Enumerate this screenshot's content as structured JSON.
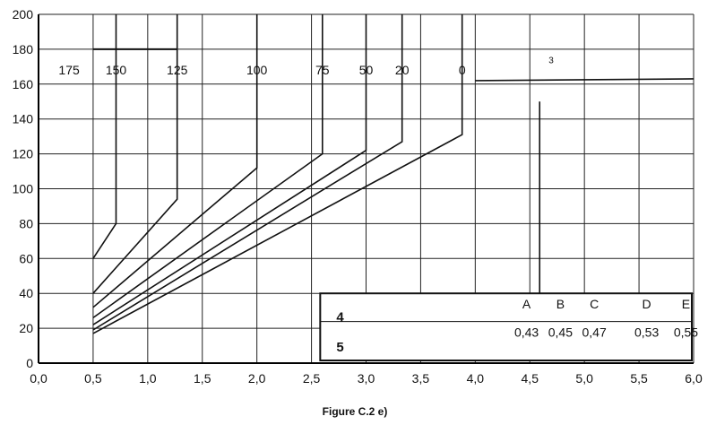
{
  "chart_data": {
    "type": "line",
    "title": "",
    "caption": "Figure C.2 e)",
    "xlabel": "",
    "ylabel": "",
    "xlim": [
      0,
      6
    ],
    "ylim": [
      0,
      200
    ],
    "x_ticks": [
      "0,0",
      "0,5",
      "1,0",
      "1,5",
      "2,0",
      "2,5",
      "3,0",
      "3,5",
      "4,0",
      "4,5",
      "5,0",
      "5,5",
      "6,0"
    ],
    "y_ticks": [
      "0",
      "20",
      "40",
      "60",
      "80",
      "100",
      "120",
      "140",
      "160",
      "180",
      "200"
    ],
    "grid": true,
    "series": [
      {
        "name": "175",
        "label_x": 0.28,
        "label_y": 168,
        "points": []
      },
      {
        "name": "150",
        "label_x": 0.71,
        "label_y": 168,
        "points": [
          [
            0.5,
            60
          ],
          [
            0.71,
            80
          ],
          [
            0.71,
            200
          ]
        ]
      },
      {
        "name": "125",
        "label_x": 1.27,
        "label_y": 168,
        "points": [
          [
            0.5,
            40
          ],
          [
            1.27,
            94
          ],
          [
            1.27,
            200
          ]
        ]
      },
      {
        "name": "100",
        "label_x": 2.0,
        "label_y": 168,
        "points": [
          [
            0.5,
            32
          ],
          [
            2.0,
            112
          ],
          [
            2.0,
            200
          ]
        ]
      },
      {
        "name": "75",
        "label_x": 2.6,
        "label_y": 168,
        "points": [
          [
            0.5,
            26
          ],
          [
            2.6,
            120
          ],
          [
            2.6,
            200
          ]
        ]
      },
      {
        "name": "50",
        "label_x": 3.0,
        "label_y": 168,
        "points": [
          [
            0.5,
            22
          ],
          [
            3.0,
            122
          ],
          [
            3.0,
            200
          ]
        ]
      },
      {
        "name": "20",
        "label_x": 3.33,
        "label_y": 168,
        "points": [
          [
            0.5,
            19
          ],
          [
            3.33,
            127
          ],
          [
            3.33,
            200
          ]
        ]
      },
      {
        "name": "0",
        "label_x": 3.88,
        "label_y": 168,
        "points": [
          [
            0.5,
            17
          ],
          [
            3.88,
            131
          ],
          [
            3.88,
            200
          ]
        ]
      }
    ],
    "annotations": [
      {
        "text": "3",
        "x": 4.59,
        "y": 174
      }
    ],
    "table": {
      "row_labels": [
        "4",
        "5"
      ],
      "columns": [
        "A",
        "B",
        "C",
        "D",
        "E"
      ],
      "values": [
        "0,43",
        "0,45",
        "0,47",
        "0,53",
        "0,55"
      ]
    }
  }
}
